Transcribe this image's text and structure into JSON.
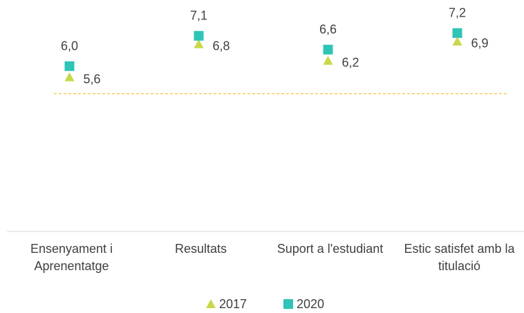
{
  "chart_data": {
    "type": "dot",
    "categories": [
      "Ensenyament i Aprenentatge",
      "Resultats",
      "Suport a l'estudiant",
      "Estic satisfet amb la titulació"
    ],
    "series": [
      {
        "name": "2017",
        "color": "#c9d84a",
        "marker": "triangle",
        "values": [
          5.6,
          6.8,
          6.2,
          6.9
        ],
        "value_labels": [
          "5,6",
          "6,8",
          "6,2",
          "6,9"
        ]
      },
      {
        "name": "2020",
        "color": "#2ec4b6",
        "marker": "square",
        "values": [
          6.0,
          7.1,
          6.6,
          7.2
        ],
        "value_labels": [
          "6,0",
          "7,1",
          "6,6",
          "7,2"
        ]
      }
    ],
    "ylim": [
      0,
      8.4
    ],
    "reference_line": {
      "value": 5,
      "color": "#f5c242"
    },
    "legend": "bottom"
  }
}
